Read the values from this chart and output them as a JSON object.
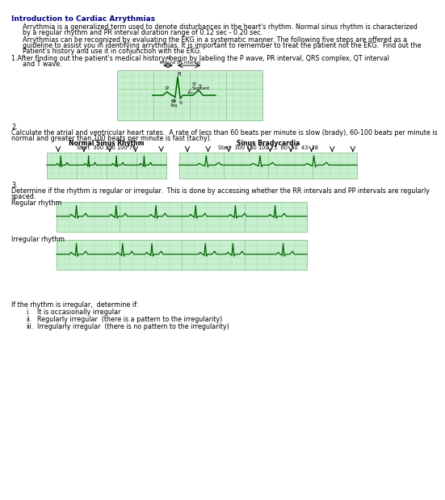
{
  "title": "Introduction to Cardiac Arrythmias",
  "para1a": "Arrythmia is a generalized term used to denote disturbances in the heart's rhythm. Normal sinus rhythm is characterized",
  "para1b": "by a regular rhythm and PR interval duration range of 0.12 sec - 0.20 sec.",
  "para2a": "Arrythmias can be recognized by evaluating the EKG in a systematic manner. The following five steps are offered as a",
  "para2b": "guideline to assist you in identifying arrythmias. It is important to remember to treat the patient not the EKG.  Find out the",
  "para2c": "Patient's history and use it in conjunction with the EKG.",
  "step1a": "1.After finding out the patient's medical history, begin by labeling the P wave, PR interval, QRS complex, QT interval",
  "step1b": "and T wave.",
  "step2_num": "2.",
  "step2a": "Calculate the atrial and ventricular heart rates.  A rate of less than 60 beats per minute is slow (brady), 60-100 beats per minute is",
  "step2b": "normal and greater than 100 beats per minute is fast (tachy).",
  "step3_num": "3.",
  "step3a": "Determine if the rhythm is regular or irregular.  This is done by accessing whether the RR intervals and PP intervals are regularly",
  "step3b": "spaced.",
  "regular_label": "Regular rhythm",
  "irregular_label": "Irregular rhythm",
  "normal_sinus_title": "Normal Sinus Rhythm",
  "normal_sinus_seq": "Start  300 150 100 75",
  "brady_title": "Sinus Bradycardia",
  "brady_seq": "Start  300 150 100 75  60  50  43  38",
  "if_irregular_title": "If the rhythm is irregular,  determine if:",
  "if_irregular_items": [
    "It is occasionally irregular",
    "Regularly irregular  (there is a pattern to the irregularity)",
    "Irregularly irregular  (there is no pattern to the irregularity)"
  ],
  "bg_color": "#ffffff",
  "ecg_bg": "#c8f0d0",
  "ecg_line": "#006600",
  "grid_color": "#90d090",
  "title_color": "#000080",
  "text_indent": 18
}
